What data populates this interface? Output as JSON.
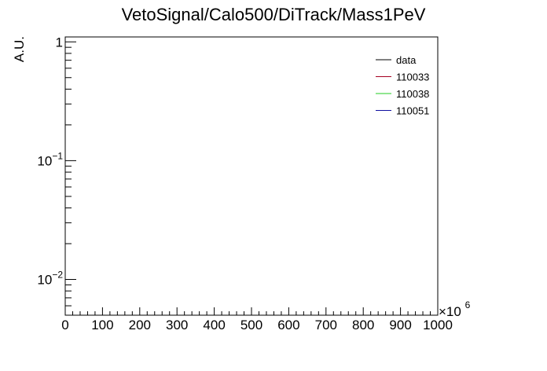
{
  "chart_data": {
    "type": "line",
    "title": "VetoSignal/Calo500/DiTrack/Mass1PeV",
    "ylabel": "A.U.",
    "xlabel": "",
    "x_multiplier": "×10",
    "x_multiplier_exponent": "6",
    "xlim": [
      0,
      1000
    ],
    "x_ticks": [
      "0",
      "100",
      "200",
      "300",
      "400",
      "500",
      "600",
      "700",
      "800",
      "900",
      "1000"
    ],
    "ylim": [
      0.005,
      1.1
    ],
    "y_scale": "log",
    "y_ticks": [
      {
        "value": 1,
        "base": "1",
        "exp": ""
      },
      {
        "value": 0.1,
        "base": "10",
        "exp": "−1"
      },
      {
        "value": 0.01,
        "base": "10",
        "exp": "−2"
      }
    ],
    "grid": false,
    "legend_position": "top-right",
    "series": [
      {
        "name": "data",
        "color": "#000000",
        "values": []
      },
      {
        "name": "110033",
        "color": "#a50021",
        "values": []
      },
      {
        "name": "110038",
        "color": "#22cc22",
        "values": []
      },
      {
        "name": "110051",
        "color": "#1010a0",
        "values": []
      }
    ]
  }
}
